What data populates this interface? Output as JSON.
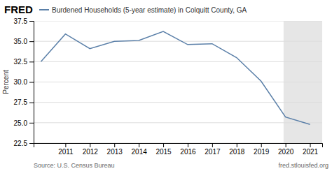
{
  "chart_data": {
    "type": "line",
    "x": [
      2010,
      2011,
      2012,
      2013,
      2014,
      2015,
      2016,
      2017,
      2018,
      2019,
      2020,
      2021
    ],
    "series": [
      {
        "name": "Burdened Households (5-year estimate) in Colquitt County, GA",
        "color": "#5a7fa8",
        "values": [
          32.5,
          35.9,
          34.1,
          35.0,
          35.1,
          36.2,
          34.6,
          34.7,
          33.0,
          30.1,
          25.7,
          24.8
        ]
      }
    ],
    "y_label": "Percent",
    "xlim": [
      2009.7,
      2021.5
    ],
    "xticks": [
      2011,
      2012,
      2013,
      2014,
      2015,
      2016,
      2017,
      2018,
      2019,
      2020,
      2021
    ],
    "ylim": [
      22.5,
      37.5
    ],
    "yticks": [
      22.5,
      {
        "value": 25.0,
        "label": "25.0"
      },
      27.5,
      {
        "value": 30.0,
        "label": "30.0"
      },
      32.5,
      {
        "value": 35.0,
        "label": "35.0"
      },
      37.5
    ],
    "shaded_start": 2019.92,
    "shaded_end": 2021.5,
    "grid": true,
    "legend": "top-left",
    "annotations": [
      "FRED",
      "Source: U.S. Census Bureau",
      "fred.stlouisfed.org"
    ]
  }
}
